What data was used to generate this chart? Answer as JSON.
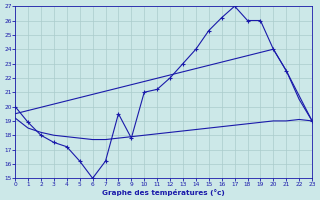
{
  "xlabel": "Graphe des températures (°c)",
  "bg_color": "#cce8e8",
  "grid_color": "#aacccc",
  "line_color": "#1a1aaa",
  "xlim": [
    0,
    23
  ],
  "ylim": [
    15,
    27
  ],
  "xticks": [
    0,
    1,
    2,
    3,
    4,
    5,
    6,
    7,
    8,
    9,
    10,
    11,
    12,
    13,
    14,
    15,
    16,
    17,
    18,
    19,
    20,
    21,
    22,
    23
  ],
  "yticks": [
    15,
    16,
    17,
    18,
    19,
    20,
    21,
    22,
    23,
    24,
    25,
    26,
    27
  ],
  "line1_x": [
    0,
    1,
    2,
    3,
    4,
    5,
    6,
    7,
    8,
    9,
    10,
    11,
    12,
    13,
    14,
    15,
    16,
    17,
    18,
    19,
    20,
    21,
    23
  ],
  "line1_y": [
    20,
    18.9,
    18.0,
    17.5,
    17.2,
    16.2,
    15.0,
    16.2,
    19.5,
    17.8,
    21.0,
    21.2,
    22.0,
    23.0,
    24.0,
    25.3,
    26.2,
    27.0,
    26.0,
    26.0,
    24.0,
    22.5,
    19.0
  ],
  "line2_x": [
    0,
    1,
    2,
    3,
    4,
    5,
    6,
    7,
    8,
    9,
    10,
    11,
    12,
    13,
    14,
    15,
    16,
    17,
    18,
    19,
    20,
    21,
    22,
    23
  ],
  "line2_y": [
    19.2,
    18.5,
    18.2,
    18.0,
    17.9,
    17.8,
    17.7,
    17.7,
    17.8,
    17.9,
    18.0,
    18.1,
    18.2,
    18.3,
    18.4,
    18.5,
    18.6,
    18.7,
    18.8,
    18.9,
    19.0,
    19.0,
    19.1,
    19.0
  ],
  "line3_x": [
    0,
    20,
    21,
    22,
    23
  ],
  "line3_y": [
    19.5,
    24.0,
    22.5,
    20.5,
    19.0
  ]
}
